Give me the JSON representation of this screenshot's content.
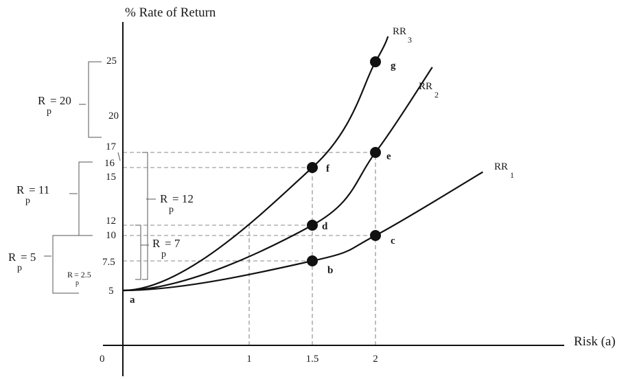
{
  "chart_data": {
    "type": "line",
    "title": "",
    "ylabel": "% Rate of Return",
    "xlabel": "Risk (a)",
    "origin_label": "0",
    "x_ticks": [
      "1",
      "1.5",
      "2"
    ],
    "y_ticks": [
      "5",
      "7.5",
      "10",
      "12",
      "15",
      "16",
      "17",
      "20",
      "25"
    ],
    "series": [
      {
        "name": "RR",
        "sub": "1",
        "x": [
          0,
          1.5,
          2,
          2.85
        ],
        "y": [
          5,
          7.5,
          10,
          15.5
        ]
      },
      {
        "name": "RR",
        "sub": "2",
        "x": [
          0,
          1.5,
          2,
          2.45
        ],
        "y": [
          5,
          12,
          17,
          24.5
        ]
      },
      {
        "name": "RR",
        "sub": "3",
        "x": [
          0,
          1.5,
          2,
          2.1
        ],
        "y": [
          5,
          16,
          25,
          28.7
        ]
      }
    ],
    "points": [
      {
        "label": "a",
        "x": 0,
        "y": 5
      },
      {
        "label": "b",
        "x": 1.5,
        "y": 7.5
      },
      {
        "label": "c",
        "x": 2,
        "y": 10
      },
      {
        "label": "d",
        "x": 1.5,
        "y": 12
      },
      {
        "label": "e",
        "x": 2,
        "y": 17
      },
      {
        "label": "f",
        "x": 1.5,
        "y": 16
      },
      {
        "label": "g",
        "x": 2,
        "y": 25
      }
    ],
    "guides": [
      {
        "from_x": 0,
        "to_x": 1.5,
        "y": 7.5
      },
      {
        "from_x": 0,
        "to_x": 2,
        "y": 10
      },
      {
        "from_x": 0,
        "to_x": 1.5,
        "y": 12
      },
      {
        "from_x": 0,
        "to_x": 1.5,
        "y": 16
      },
      {
        "from_x": 0,
        "to_x": 2,
        "y": 17
      },
      {
        "x": 1,
        "from_y": 0,
        "to_y": 12
      },
      {
        "x": 1.5,
        "from_y": 0,
        "to_y": 16
      },
      {
        "x": 2,
        "from_y": 0,
        "to_y": 17
      }
    ],
    "brackets": [
      {
        "main": "R",
        "sub": "p",
        "value": "= 20",
        "from_y": 20,
        "to_y": 25
      },
      {
        "main": "R",
        "sub": "p",
        "value": "= 11",
        "from_y": 10,
        "to_y": 16
      },
      {
        "main": "R",
        "sub": "p",
        "value": "= 5",
        "from_y": 5,
        "to_y": 10
      },
      {
        "main": "R",
        "sub": "p",
        "value": "= 2.5",
        "from_y": 5,
        "to_y": 7.5
      },
      {
        "main": "R",
        "sub": "p",
        "value": "= 12",
        "from_y": 5,
        "to_y": 17
      },
      {
        "main": "R",
        "sub": "p",
        "value": "= 7",
        "from_y": 5,
        "to_y": 12
      }
    ]
  }
}
